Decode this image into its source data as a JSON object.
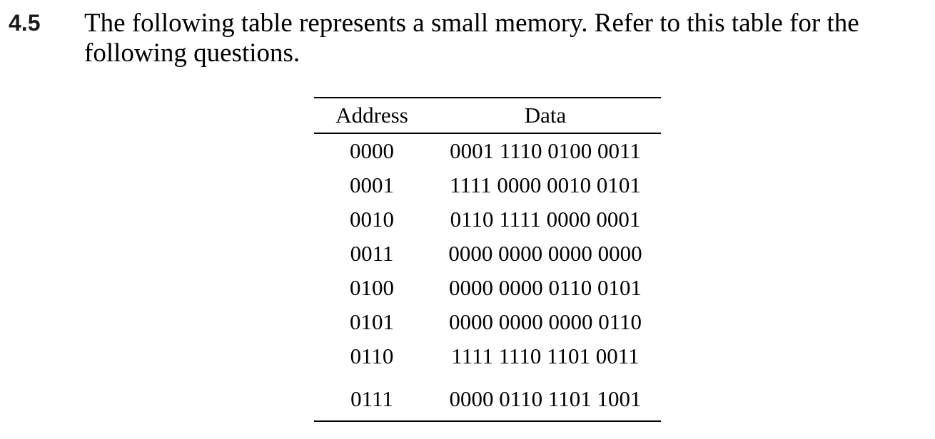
{
  "problem": {
    "number": "4.5",
    "text_line1": "The following table represents a small memory. Refer to this table for the",
    "text_line2": "following questions."
  },
  "table": {
    "headers": {
      "address": "Address",
      "data": "Data"
    },
    "rows": [
      {
        "address": "0000",
        "data": "0001 1110 0100 0011"
      },
      {
        "address": "0001",
        "data": "1111 0000 0010 0101"
      },
      {
        "address": "0010",
        "data": "0110 1111 0000 0001"
      },
      {
        "address": "0011",
        "data": "0000 0000 0000 0000"
      },
      {
        "address": "0100",
        "data": "0000 0000 0110 0101"
      },
      {
        "address": "0101",
        "data": "0000 0000 0000 0110"
      },
      {
        "address": "0110",
        "data": "1111 1110 1101 0011"
      },
      {
        "address": "0111",
        "data": "0000 0110 1101 1001"
      }
    ]
  }
}
